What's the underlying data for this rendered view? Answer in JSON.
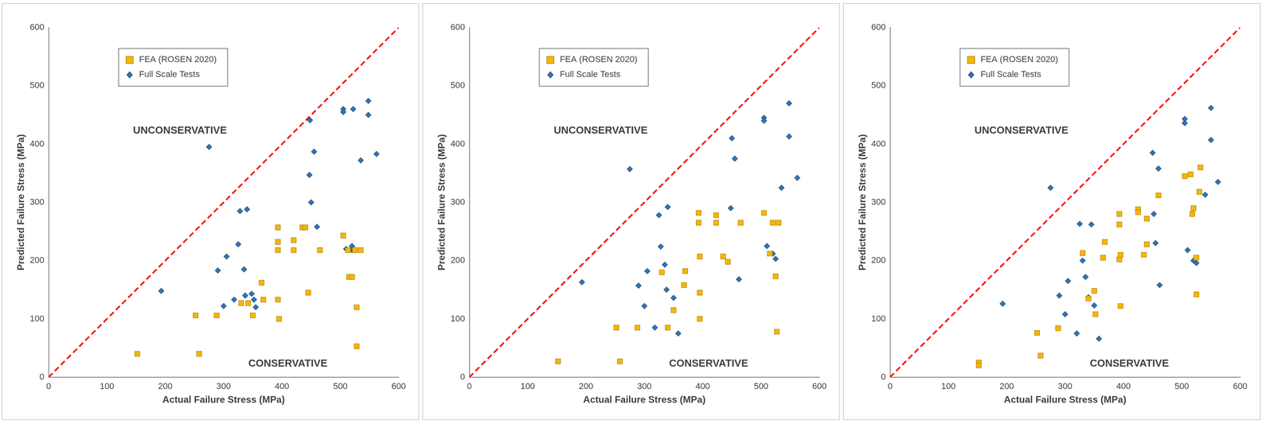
{
  "chart_data": [
    {
      "type": "scatter",
      "x_label": "Actual Failure Stress (MPa)",
      "y_label": "Predicted Failure Stress (MPa)",
      "xlim": [
        0,
        600
      ],
      "xticks": [
        0,
        100,
        200,
        300,
        400,
        500,
        600
      ],
      "ylim": [
        0,
        600
      ],
      "yticks": [
        0,
        100,
        200,
        300,
        400,
        500,
        600
      ],
      "grid": false,
      "legend": "upper left",
      "annotations": [
        {
          "text": "UNCONSERVATIVE",
          "x": 225,
          "y": 423
        },
        {
          "text": "CONSERVATIVE",
          "x": 410,
          "y": 23
        }
      ],
      "diagonal": {
        "x": [
          0,
          600
        ],
        "values": [
          0,
          600
        ],
        "color": "#ff0000",
        "line_style": "dashed"
      },
      "series": [
        {
          "name": "FEA (ROSEN 2020)",
          "color": "#f5b800",
          "marker": "square",
          "x": [
            152,
            252,
            258,
            288,
            330,
            342,
            350,
            365,
            368,
            393,
            393,
            393,
            393,
            395,
            420,
            420,
            435,
            440,
            445,
            465,
            505,
            515,
            520,
            525,
            528,
            528,
            535,
            513
          ],
          "values": [
            40,
            106,
            40,
            106,
            127,
            127,
            106,
            162,
            133,
            257,
            232,
            218,
            133,
            100,
            218,
            235,
            257,
            257,
            145,
            218,
            243,
            172,
            172,
            218,
            120,
            53,
            218,
            218
          ]
        },
        {
          "name": "Full Scale Tests",
          "color": "#2e75b6",
          "marker": "diamond",
          "x": [
            193,
            275,
            290,
            300,
            305,
            318,
            325,
            328,
            335,
            337,
            340,
            348,
            352,
            355,
            448,
            447,
            450,
            455,
            460,
            505,
            505,
            510,
            520,
            522,
            535,
            548,
            548,
            562,
            520,
            525
          ],
          "values": [
            148,
            395,
            183,
            122,
            207,
            133,
            228,
            285,
            185,
            140,
            288,
            143,
            133,
            120,
            441,
            347,
            300,
            387,
            258,
            460,
            455,
            220,
            225,
            460,
            372,
            474,
            450,
            383,
            218,
            218
          ]
        }
      ]
    },
    {
      "type": "scatter",
      "x_label": "Actual Failure Stress (MPa)",
      "y_label": "Predicted Failure Stress (MPa)",
      "xlim": [
        0,
        600
      ],
      "xticks": [
        0,
        100,
        200,
        300,
        400,
        500,
        600
      ],
      "ylim": [
        0,
        600
      ],
      "yticks": [
        0,
        100,
        200,
        300,
        400,
        500,
        600
      ],
      "grid": false,
      "legend": "upper left",
      "annotations": [
        {
          "text": "UNCONSERVATIVE",
          "x": 225,
          "y": 423
        },
        {
          "text": "CONSERVATIVE",
          "x": 410,
          "y": 23
        }
      ],
      "diagonal": {
        "x": [
          0,
          600
        ],
        "values": [
          0,
          600
        ],
        "color": "#ff0000",
        "line_style": "dashed"
      },
      "series": [
        {
          "name": "FEA (ROSEN 2020)",
          "color": "#f5b800",
          "marker": "square",
          "x": [
            152,
            252,
            258,
            288,
            330,
            340,
            350,
            368,
            370,
            393,
            393,
            395,
            395,
            395,
            423,
            423,
            435,
            443,
            465,
            505,
            515,
            520,
            525,
            527,
            530
          ],
          "values": [
            27,
            85,
            27,
            85,
            180,
            85,
            115,
            158,
            182,
            282,
            265,
            207,
            145,
            100,
            278,
            265,
            207,
            198,
            265,
            282,
            212,
            265,
            173,
            78,
            265
          ]
        },
        {
          "name": "Full Scale Tests",
          "color": "#2e75b6",
          "marker": "diamond",
          "x": [
            193,
            275,
            290,
            300,
            305,
            318,
            325,
            328,
            335,
            338,
            340,
            350,
            358,
            448,
            450,
            455,
            462,
            505,
            505,
            510,
            520,
            525,
            535,
            548,
            548,
            562
          ],
          "values": [
            163,
            357,
            157,
            122,
            182,
            85,
            278,
            224,
            193,
            150,
            292,
            136,
            75,
            290,
            410,
            375,
            168,
            445,
            440,
            225,
            212,
            203,
            325,
            470,
            413,
            342
          ]
        }
      ]
    },
    {
      "type": "scatter",
      "x_label": "Actual Failure Stress (MPa)",
      "y_label": "Predicted Failure Stress (MPa)",
      "xlim": [
        0,
        600
      ],
      "xticks": [
        0,
        100,
        200,
        300,
        400,
        500,
        600
      ],
      "ylim": [
        0,
        600
      ],
      "yticks": [
        0,
        100,
        200,
        300,
        400,
        500,
        600
      ],
      "grid": false,
      "legend": "upper left",
      "annotations": [
        {
          "text": "UNCONSERVATIVE",
          "x": 225,
          "y": 423
        },
        {
          "text": "CONSERVATIVE",
          "x": 410,
          "y": 23
        }
      ],
      "diagonal": {
        "x": [
          0,
          600
        ],
        "values": [
          0,
          600
        ],
        "color": "#ff0000",
        "line_style": "dashed"
      },
      "series": [
        {
          "name": "FEA (ROSEN 2020)",
          "color": "#f5b800",
          "marker": "square",
          "x": [
            152,
            152,
            252,
            258,
            288,
            330,
            340,
            350,
            352,
            368,
            365,
            393,
            393,
            393,
            395,
            395,
            425,
            425,
            435,
            440,
            440,
            460,
            505,
            515,
            518,
            520,
            525,
            525,
            530,
            532
          ],
          "values": [
            25,
            20,
            76,
            37,
            84,
            213,
            135,
            148,
            108,
            232,
            205,
            280,
            262,
            202,
            210,
            122,
            288,
            283,
            210,
            228,
            272,
            312,
            345,
            348,
            280,
            290,
            205,
            142,
            318,
            360
          ]
        },
        {
          "name": "Full Scale Tests",
          "color": "#2e75b6",
          "marker": "diamond",
          "x": [
            193,
            275,
            290,
            300,
            305,
            320,
            325,
            330,
            335,
            340,
            345,
            350,
            358,
            450,
            452,
            455,
            460,
            462,
            505,
            505,
            510,
            520,
            525,
            540,
            550,
            550,
            562
          ],
          "values": [
            126,
            325,
            140,
            108,
            165,
            75,
            263,
            200,
            172,
            137,
            262,
            123,
            66,
            385,
            280,
            230,
            358,
            158,
            443,
            436,
            218,
            200,
            196,
            313,
            462,
            407,
            335
          ]
        }
      ]
    }
  ]
}
